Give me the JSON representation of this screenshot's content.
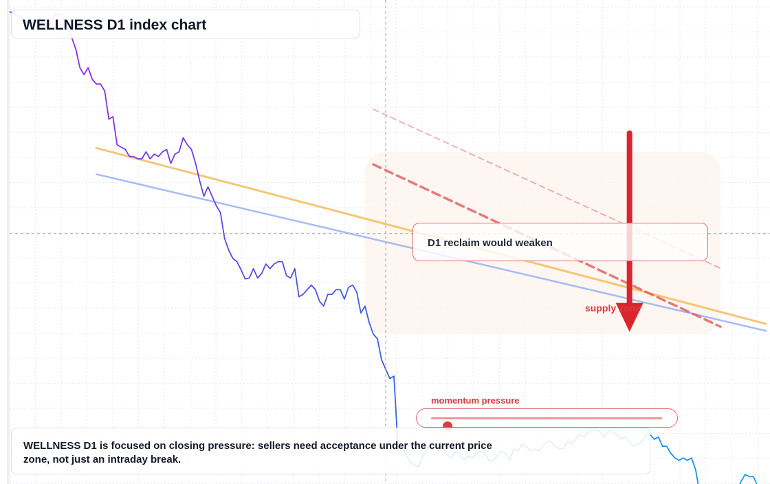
{
  "title": "WELLNESS D1 index chart",
  "callout": "D1 reclaim would weaken",
  "supply_label": "supply zone",
  "momentum": {
    "label": "momentum pressure",
    "level": 0.07
  },
  "note": "WELLNESS D1 is focused on closing pressure: sellers need acceptance under the current price zone, not just an intraday break.",
  "colors": {
    "price_start": "#a020f0",
    "price_end": "#1aa0e0",
    "trend_upper": "#f6c068",
    "trend_lower": "#9eb4f4",
    "resistance": "#e05a60",
    "arrow": "#d8262c",
    "zone": "#fdf5ee"
  },
  "chart_data": {
    "type": "line",
    "title": "WELLNESS D1 index chart",
    "xlabel": "",
    "ylabel": "",
    "grid": true,
    "crosshair": {
      "x": 0.5,
      "y": 0.515
    },
    "series": [
      {
        "values": [
          0.99,
          0.985,
          0.98,
          0.975,
          0.97,
          0.965,
          0.962,
          0.958,
          0.955,
          0.96,
          0.968,
          0.985,
          0.985,
          0.975,
          0.955,
          0.935,
          0.91,
          0.87,
          0.855,
          0.87,
          0.845,
          0.835,
          0.835,
          0.82,
          0.76,
          0.765,
          0.705,
          0.7,
          0.695,
          0.68,
          0.68,
          0.675,
          0.675,
          0.69,
          0.675,
          0.685,
          0.68,
          0.69,
          0.695,
          0.665,
          0.685,
          0.69,
          0.72,
          0.705,
          0.695,
          0.665,
          0.628,
          0.595,
          0.615,
          0.595,
          0.575,
          0.56,
          0.505,
          0.48,
          0.462,
          0.455,
          0.438,
          0.418,
          0.42,
          0.44,
          0.42,
          0.43,
          0.45,
          0.44,
          0.45,
          0.455,
          0.455,
          0.425,
          0.42,
          0.44,
          0.38,
          0.385,
          0.395,
          0.405,
          0.395,
          0.37,
          0.36,
          0.385,
          0.385,
          0.395,
          0.395,
          0.375,
          0.4,
          0.405,
          0.39,
          0.345,
          0.36,
          0.325,
          0.3,
          0.29,
          0.245,
          0.225,
          0.205,
          0.21,
          0.055,
          0.06,
          0.04,
          0.025,
          0.02,
          0.015,
          0.04,
          0.055,
          0.065,
          0.06,
          0.05,
          0.055,
          0.04,
          0.035,
          0.05,
          0.04,
          0.03,
          0.04,
          0.035,
          0.045,
          0.05,
          0.045,
          0.03,
          0.03,
          0.04,
          0.05,
          0.045,
          0.03,
          0.055,
          0.05,
          0.065,
          0.06,
          0.05,
          0.055,
          0.05,
          0.06,
          0.07,
          0.07,
          0.06,
          0.055,
          0.055,
          0.07,
          0.065,
          0.075,
          0.085,
          0.08,
          0.09,
          0.095,
          0.095,
          0.09,
          0.08,
          0.095,
          0.09,
          0.085,
          0.075,
          0.08,
          0.07,
          0.06,
          0.065,
          0.07,
          0.085,
          0.085,
          0.075,
          0.08,
          0.06,
          0.06,
          0.045,
          0.035,
          0.03,
          0.035,
          0.03,
          0.035,
          0.01,
          -0.04,
          -0.055,
          -0.065,
          -0.07,
          -0.06,
          -0.04,
          -0.055,
          -0.03,
          -0.025,
          -0.035,
          -0.015,
          0.0,
          -0.005,
          -0.005,
          -0.025,
          -0.04
        ]
      }
    ],
    "trendlines": [
      {
        "name": "upper",
        "start": {
          "i": 21,
          "v": 0.698
        },
        "end": {
          "i": 183,
          "v": 0.322
        }
      },
      {
        "name": "lower",
        "start": {
          "i": 21,
          "v": 0.642
        },
        "end": {
          "i": 183,
          "v": 0.307
        }
      },
      {
        "name": "resistance-solid",
        "start": {
          "i": 88,
          "v": 0.663
        },
        "end": {
          "i": 172,
          "v": 0.316
        }
      },
      {
        "name": "resistance-faint",
        "start": {
          "i": 88,
          "v": 0.781
        },
        "end": {
          "i": 172,
          "v": 0.441
        }
      }
    ],
    "supply_zone": {
      "i0": 86,
      "i1": 172,
      "v0": 0.3,
      "v1": 0.69
    },
    "arrow": {
      "i": 150,
      "from": 0.73,
      "to": 0.305
    }
  }
}
